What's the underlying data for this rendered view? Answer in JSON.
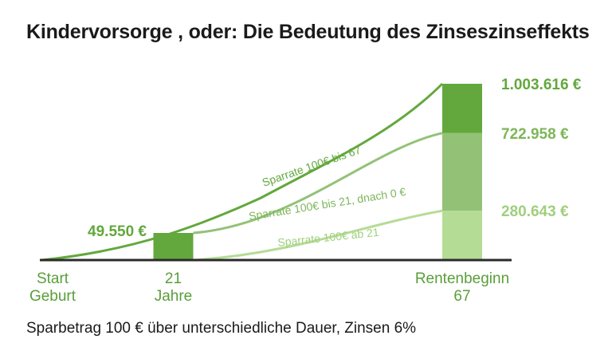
{
  "chart_data": {
    "type": "area",
    "title": "Kindervorsorge , oder: Die Bedeutung des Zinseszinseffekts",
    "caption": "Sparbetrag 100 € über unterschiedliche Dauer, Zinsen 6%",
    "x_ticks": [
      {
        "x": 0,
        "lines": [
          "Start",
          "Geburt"
        ]
      },
      {
        "x": 21,
        "lines": [
          "21",
          "Jahre"
        ]
      },
      {
        "x": 67,
        "lines": [
          "Rentenbeginn",
          "67"
        ]
      }
    ],
    "xlim": [
      0,
      67
    ],
    "ylim": [
      0,
      1003616
    ],
    "series": [
      {
        "name": "Sparrate 100€ bis 67",
        "start": 0,
        "end": 67,
        "final_value": 1003616,
        "final_label": "1.003.616 €",
        "color": "#62a83d"
      },
      {
        "name": "Sparrate 100€ bis 21, dnach 0 €",
        "start": 0,
        "end": 21,
        "final_value": 722958,
        "final_label": "722.958 €",
        "color": "#93c277"
      },
      {
        "name": "Sparrate 100€ ab 21",
        "start": 21,
        "end": 67,
        "final_value": 280643,
        "final_label": "280.643 €",
        "color": "#b5dc95"
      }
    ],
    "bars": [
      {
        "x": 21,
        "value": 49550,
        "label": "49.550 €",
        "color": "#62a83d"
      },
      {
        "x": 67,
        "segments": [
          {
            "value": 280643,
            "color": "#b5dc95"
          },
          {
            "value": 442315,
            "color": "#93c277"
          },
          {
            "value": 280658,
            "color": "#62a83d"
          }
        ]
      }
    ],
    "colors": {
      "dark": "#62a83d",
      "mid": "#93c277",
      "light": "#b5dc95",
      "axis": "#2b2b2b",
      "label_mid": "#7db65a",
      "label_light": "#9fcf7c"
    }
  }
}
